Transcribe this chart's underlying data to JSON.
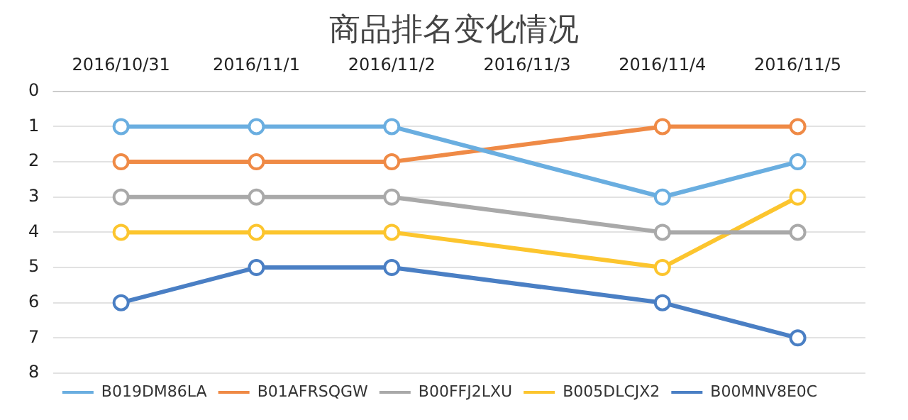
{
  "chart_data": {
    "type": "line",
    "title": "商品排名变化情况",
    "categories": [
      "2016/10/31",
      "2016/11/1",
      "2016/11/2",
      "2016/11/3",
      "2016/11/4",
      "2016/11/5"
    ],
    "series": [
      {
        "name": "B019DM86LA",
        "color": "#6aaee0",
        "values": [
          1,
          1,
          1,
          null,
          3,
          2
        ]
      },
      {
        "name": "B01AFRSQGW",
        "color": "#ef8a46",
        "values": [
          2,
          2,
          2,
          null,
          1,
          1
        ]
      },
      {
        "name": "B00FFJ2LXU",
        "color": "#a9a9a9",
        "values": [
          3,
          3,
          3,
          null,
          4,
          4
        ]
      },
      {
        "name": "B005DLCJX2",
        "color": "#fcc52e",
        "values": [
          4,
          4,
          4,
          null,
          5,
          3
        ]
      },
      {
        "name": "B00MNV8E0C",
        "color": "#4a7fc4",
        "values": [
          6,
          5,
          5,
          null,
          6,
          7
        ]
      }
    ],
    "ylim": [
      8,
      0
    ],
    "yticks": [
      0,
      1,
      2,
      3,
      4,
      5,
      6,
      7,
      8
    ],
    "grid": "y",
    "legend": "bottom",
    "marker": "circle",
    "line_style": "solid"
  }
}
